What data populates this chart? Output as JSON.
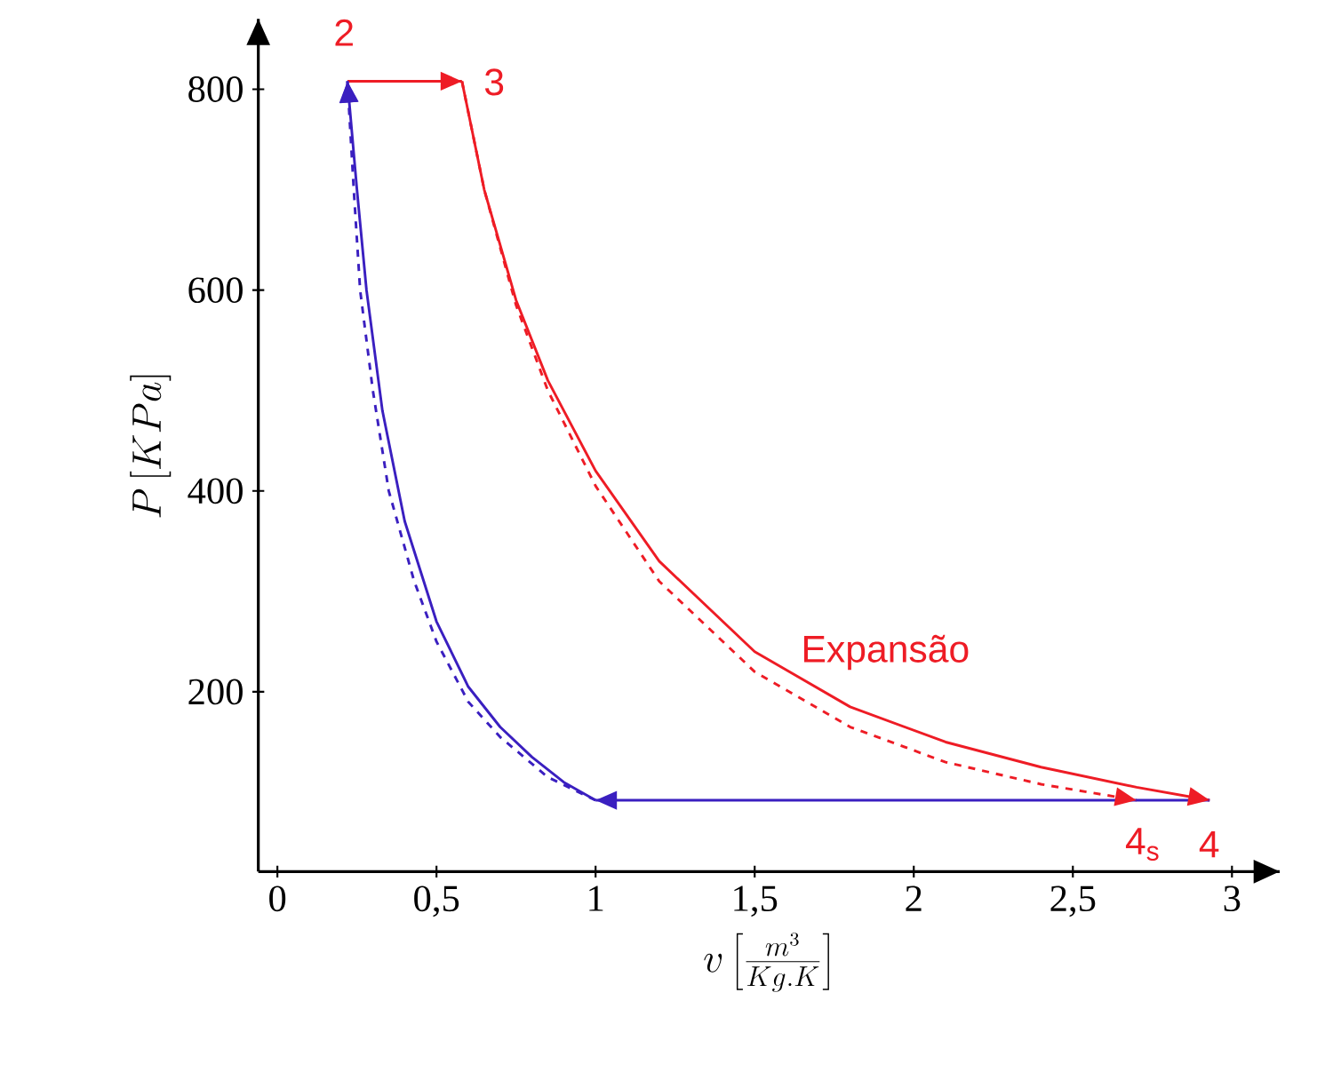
{
  "chart_data": {
    "type": "line",
    "xlabel": "v\\left[\\frac{m^{3}}{Kg.K}\\right]",
    "ylabel": "P\\left[KPa\\right]",
    "xlim": [
      -0.06,
      3.15
    ],
    "ylim": [
      21,
      870
    ],
    "xticks": [
      0,
      {
        "value": 0.5,
        "label": "0,5"
      },
      1,
      {
        "value": 1.5,
        "label": "1,5"
      },
      2,
      {
        "value": 2.5,
        "label": "2,5"
      },
      3
    ],
    "yticks": [
      200,
      400,
      600,
      800
    ],
    "grid": false,
    "marker": "none",
    "series": [
      {
        "color": "#ee1c25",
        "line_style": "solid",
        "x": [
          0.22,
          0.58
        ],
        "values": [
          808,
          808
        ]
      },
      {
        "color": "#ee1c25",
        "line_style": "solid",
        "x": [
          0.58,
          0.65,
          0.75,
          0.85,
          1.0,
          1.2,
          1.5,
          1.8,
          2.1,
          2.4,
          2.7,
          2.93
        ],
        "values": [
          808,
          700,
          590,
          510,
          420,
          330,
          240,
          185,
          150,
          125,
          105,
          92
        ]
      },
      {
        "color": "#ee1c25",
        "line_style": "dashed",
        "x": [
          0.58,
          0.65,
          0.75,
          0.85,
          1.0,
          1.2,
          1.5,
          1.8,
          2.1,
          2.4,
          2.7
        ],
        "values": [
          808,
          700,
          585,
          500,
          405,
          310,
          220,
          165,
          130,
          108,
          92
        ]
      },
      {
        "color": "#3a1fc0",
        "line_style": "solid",
        "x": [
          2.93,
          1.0
        ],
        "values": [
          92,
          92
        ]
      },
      {
        "color": "#3a1fc0",
        "line_style": "solid",
        "x": [
          1.0,
          0.9,
          0.8,
          0.7,
          0.6,
          0.5,
          0.4,
          0.33,
          0.28,
          0.25,
          0.22
        ],
        "values": [
          92,
          110,
          135,
          165,
          205,
          270,
          370,
          480,
          600,
          700,
          808
        ]
      },
      {
        "color": "#3a1fc0",
        "line_style": "dashed",
        "x": [
          1.0,
          0.85,
          0.7,
          0.6,
          0.5,
          0.43,
          0.35,
          0.3,
          0.26,
          0.24,
          0.22
        ],
        "values": [
          92,
          115,
          155,
          190,
          250,
          310,
          400,
          500,
          600,
          700,
          808
        ]
      }
    ],
    "annotations": [
      "2",
      "3",
      "4$_{s}$",
      "4",
      "Expansão"
    ]
  }
}
